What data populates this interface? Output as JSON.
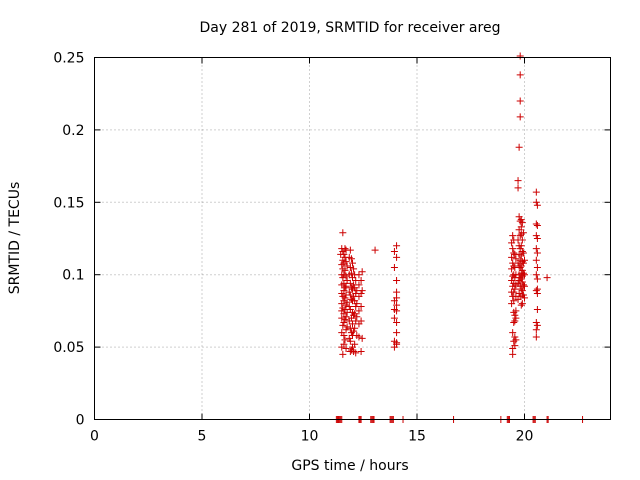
{
  "chart_data": {
    "type": "scatter",
    "title": "Day 281 of 2019, SRMTID for receiver areg",
    "xlabel": "GPS time / hours",
    "ylabel": "SRMTID / TECUs",
    "xlim": [
      0,
      24
    ],
    "ylim": [
      0,
      0.25
    ],
    "xticks": [
      0,
      5,
      10,
      15,
      20
    ],
    "xtick_labels": [
      "0",
      "5",
      "10",
      "15",
      "20"
    ],
    "yticks": [
      0,
      0.05,
      0.1,
      0.15,
      0.2,
      0.25
    ],
    "ytick_labels": [
      "0",
      "0.05",
      "0.1",
      "0.15",
      "0.2",
      "0.25"
    ],
    "grid": true,
    "marker": "+",
    "color": "#cc0000",
    "series": [
      {
        "name": "SRMTID",
        "x": [
          11.55,
          11.5,
          11.45,
          11.5,
          11.5,
          11.5,
          11.5,
          11.5,
          11.5,
          11.5,
          11.5,
          11.5,
          11.55,
          11.55,
          11.55,
          11.55,
          11.55,
          11.55,
          11.55,
          11.55,
          11.6,
          11.6,
          11.6,
          11.6,
          11.6,
          11.6,
          11.6,
          11.6,
          11.6,
          11.6,
          11.65,
          11.65,
          11.65,
          11.65,
          11.65,
          11.65,
          11.65,
          11.65,
          11.7,
          11.7,
          11.7,
          11.7,
          11.7,
          11.7,
          11.7,
          11.7,
          11.7,
          11.75,
          11.75,
          11.75,
          11.75,
          11.75,
          11.85,
          11.85,
          11.85,
          11.85,
          11.85,
          11.85,
          11.9,
          11.9,
          11.9,
          11.9,
          11.9,
          11.9,
          11.9,
          11.9,
          11.95,
          11.95,
          11.95,
          11.95,
          11.95,
          11.95,
          11.95,
          12.0,
          12.0,
          12.0,
          12.0,
          12.0,
          12.0,
          12.0,
          12.0,
          12.05,
          12.05,
          12.05,
          12.05,
          12.05,
          12.05,
          12.1,
          12.1,
          12.1,
          12.1,
          12.1,
          12.1,
          12.15,
          12.15,
          12.15,
          12.15,
          12.15,
          12.2,
          12.2,
          12.2,
          12.2,
          12.3,
          12.3,
          12.3,
          12.3,
          12.3,
          12.3,
          12.4,
          12.4,
          12.4,
          12.4,
          12.4,
          12.45,
          12.45,
          12.45,
          13.05,
          13.95,
          13.95,
          13.95,
          13.95,
          13.95,
          13.95,
          13.95,
          14.05,
          14.05,
          14.05,
          14.05,
          14.05,
          14.05,
          14.05,
          14.05,
          14.05,
          14.05,
          14.05,
          19.4,
          19.4,
          19.4,
          19.4,
          19.4,
          19.4,
          19.45,
          19.45,
          19.45,
          19.45,
          19.45,
          19.45,
          19.45,
          19.45,
          19.45,
          19.5,
          19.5,
          19.5,
          19.5,
          19.5,
          19.5,
          19.5,
          19.5,
          19.5,
          19.5,
          19.55,
          19.55,
          19.55,
          19.55,
          19.55,
          19.55,
          19.55,
          19.55,
          19.6,
          19.6,
          19.6,
          19.6,
          19.6,
          19.6,
          19.6,
          19.7,
          19.7,
          19.7,
          19.7,
          19.7,
          19.7,
          19.75,
          19.75,
          19.75,
          19.75,
          19.75,
          19.75,
          19.75,
          19.75,
          19.75,
          19.8,
          19.8,
          19.8,
          19.8,
          19.8,
          19.8,
          19.8,
          19.8,
          19.8,
          19.8,
          19.8,
          19.8,
          19.85,
          19.85,
          19.85,
          19.85,
          19.85,
          19.85,
          19.85,
          19.85,
          19.85,
          19.85,
          19.9,
          19.9,
          19.9,
          19.9,
          19.9,
          19.9,
          19.9,
          19.9,
          19.9,
          19.9,
          19.95,
          19.95,
          19.95,
          19.95,
          19.95,
          19.95,
          20.0,
          20.0,
          20.0,
          20.0,
          20.55,
          20.55,
          20.55,
          20.55,
          20.55,
          20.55,
          20.55,
          20.55,
          20.55,
          20.55,
          20.55,
          20.6,
          20.6,
          20.6,
          20.6,
          20.6,
          20.6,
          20.6,
          20.6,
          20.6,
          20.6,
          21.05,
          11.25,
          11.3,
          11.35,
          11.4,
          11.45,
          11.5,
          12.3,
          12.35,
          12.4,
          12.85,
          12.9,
          12.95,
          13.0,
          13.75,
          13.8,
          13.85,
          13.9,
          14.35,
          16.7,
          18.9,
          19.2,
          19.25,
          19.3,
          20.4,
          20.45,
          20.5,
          21.05,
          21.1,
          22.7
        ],
        "y": [
          0.129,
          0.118,
          0.114,
          0.107,
          0.1,
          0.093,
          0.087,
          0.08,
          0.075,
          0.07,
          0.06,
          0.05,
          0.116,
          0.11,
          0.104,
          0.098,
          0.085,
          0.077,
          0.065,
          0.045,
          0.114,
          0.108,
          0.1,
          0.094,
          0.089,
          0.082,
          0.073,
          0.067,
          0.058,
          0.052,
          0.118,
          0.112,
          0.103,
          0.091,
          0.084,
          0.076,
          0.069,
          0.055,
          0.117,
          0.109,
          0.099,
          0.092,
          0.086,
          0.079,
          0.071,
          0.062,
          0.049,
          0.106,
          0.096,
          0.081,
          0.074,
          0.064,
          0.112,
          0.1,
          0.088,
          0.078,
          0.068,
          0.056,
          0.117,
          0.105,
          0.094,
          0.086,
          0.076,
          0.063,
          0.054,
          0.047,
          0.111,
          0.101,
          0.091,
          0.083,
          0.07,
          0.06,
          0.048,
          0.108,
          0.098,
          0.09,
          0.082,
          0.074,
          0.066,
          0.058,
          0.05,
          0.104,
          0.093,
          0.085,
          0.072,
          0.061,
          0.047,
          0.1,
          0.091,
          0.082,
          0.073,
          0.063,
          0.052,
          0.096,
          0.087,
          0.078,
          0.068,
          0.046,
          0.089,
          0.08,
          0.071,
          0.058,
          0.1,
          0.093,
          0.085,
          0.075,
          0.066,
          0.057,
          0.096,
          0.087,
          0.078,
          0.068,
          0.047,
          0.102,
          0.089,
          0.056,
          0.117,
          0.116,
          0.105,
          0.082,
          0.076,
          0.07,
          0.054,
          0.05,
          0.12,
          0.112,
          0.096,
          0.088,
          0.084,
          0.079,
          0.075,
          0.067,
          0.06,
          0.053,
          0.052,
          0.122,
          0.112,
          0.104,
          0.096,
          0.088,
          0.08,
          0.127,
          0.118,
          0.108,
          0.099,
          0.092,
          0.085,
          0.06,
          0.049,
          0.045,
          0.124,
          0.115,
          0.106,
          0.1,
          0.094,
          0.088,
          0.082,
          0.074,
          0.067,
          0.054,
          0.114,
          0.105,
          0.098,
          0.09,
          0.072,
          0.068,
          0.057,
          0.051,
          0.111,
          0.1,
          0.093,
          0.085,
          0.075,
          0.07,
          0.055,
          0.165,
          0.16,
          0.124,
          0.108,
          0.094,
          0.083,
          0.188,
          0.14,
          0.131,
          0.12,
          0.114,
          0.106,
          0.1,
          0.096,
          0.087,
          0.251,
          0.238,
          0.22,
          0.209,
          0.137,
          0.127,
          0.118,
          0.11,
          0.105,
          0.098,
          0.092,
          0.085,
          0.138,
          0.133,
          0.128,
          0.12,
          0.113,
          0.106,
          0.101,
          0.097,
          0.09,
          0.079,
          0.136,
          0.124,
          0.116,
          0.109,
          0.103,
          0.099,
          0.095,
          0.089,
          0.086,
          0.08,
          0.129,
          0.115,
          0.108,
          0.101,
          0.093,
          0.086,
          0.11,
          0.1,
          0.092,
          0.084,
          0.157,
          0.15,
          0.135,
          0.127,
          0.118,
          0.11,
          0.1,
          0.089,
          0.067,
          0.062,
          0.057,
          0.148,
          0.134,
          0.125,
          0.115,
          0.105,
          0.097,
          0.09,
          0.087,
          0.076,
          0.065,
          0.098,
          0,
          0,
          0,
          0,
          0,
          0,
          0,
          0,
          0,
          0,
          0,
          0,
          0,
          0,
          0,
          0,
          0,
          0,
          0,
          0,
          0,
          0,
          0,
          0,
          0,
          0,
          0,
          0,
          0
        ]
      }
    ]
  }
}
